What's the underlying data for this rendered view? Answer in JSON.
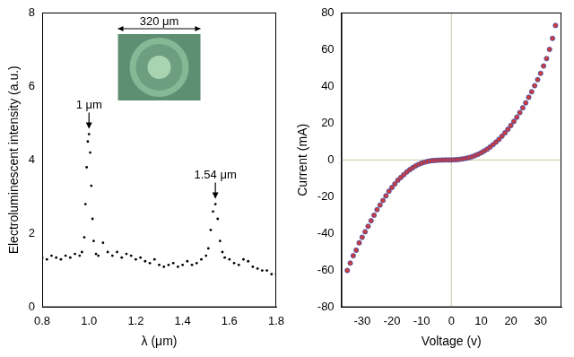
{
  "chart_data": [
    {
      "type": "scatter",
      "x_label": "λ (μm)",
      "y_label": "Electroluminescent intensity (a.u.)",
      "x": [
        0.8,
        0.82,
        0.84,
        0.86,
        0.88,
        0.9,
        0.92,
        0.94,
        0.96,
        0.97,
        0.98,
        0.985,
        0.99,
        0.995,
        1.0,
        1.005,
        1.01,
        1.015,
        1.02,
        1.03,
        1.04,
        1.06,
        1.08,
        1.1,
        1.12,
        1.14,
        1.16,
        1.18,
        1.2,
        1.22,
        1.24,
        1.26,
        1.28,
        1.3,
        1.32,
        1.34,
        1.36,
        1.38,
        1.4,
        1.42,
        1.44,
        1.46,
        1.48,
        1.5,
        1.51,
        1.52,
        1.53,
        1.54,
        1.55,
        1.56,
        1.57,
        1.58,
        1.6,
        1.62,
        1.64,
        1.66,
        1.68,
        1.7,
        1.72,
        1.74,
        1.76,
        1.78,
        1.8
      ],
      "values": [
        1.35,
        1.3,
        1.4,
        1.35,
        1.3,
        1.4,
        1.35,
        1.45,
        1.4,
        1.5,
        1.9,
        2.8,
        3.8,
        4.5,
        4.7,
        4.2,
        3.3,
        2.4,
        1.8,
        1.45,
        1.4,
        1.75,
        1.5,
        1.4,
        1.5,
        1.35,
        1.45,
        1.4,
        1.3,
        1.35,
        1.25,
        1.2,
        1.3,
        1.15,
        1.1,
        1.15,
        1.2,
        1.1,
        1.15,
        1.25,
        1.15,
        1.2,
        1.3,
        1.4,
        1.6,
        2.1,
        2.6,
        2.8,
        2.4,
        1.8,
        1.5,
        1.35,
        1.3,
        1.2,
        1.15,
        1.3,
        1.25,
        1.1,
        1.05,
        1.0,
        1.0,
        0.9,
        0.9
      ],
      "color": "#000000",
      "marker": "circle",
      "xlim": [
        0.8,
        1.8
      ],
      "xticks": [
        0.8,
        {
          "value": 1,
          "label": "1.0"
        },
        1.2,
        1.4,
        1.6,
        1.8
      ],
      "ylim": [
        0,
        8
      ],
      "yticks": [
        0,
        2,
        4,
        6,
        8
      ],
      "grid": false,
      "annotations": [
        {
          "text": "1 μm",
          "x": 1,
          "y": 4.8
        },
        {
          "text": "1.54 μm",
          "x": 1.54,
          "y": 2.9
        }
      ],
      "inset_label": "320 μm"
    },
    {
      "type": "scatter",
      "x_label": "Voltage (v)",
      "y_label": "Current (mA)",
      "x": [
        -35,
        -34,
        -33,
        -32,
        -31,
        -30,
        -29,
        -28,
        -27,
        -26,
        -25,
        -24,
        -23,
        -22,
        -21,
        -20,
        -19,
        -18,
        -17,
        -16,
        -15,
        -14,
        -13,
        -12,
        -11,
        -10,
        -9,
        -8,
        -7,
        -6,
        -5,
        -4,
        -3,
        -2,
        -1,
        0,
        1,
        2,
        3,
        4,
        5,
        6,
        7,
        8,
        9,
        10,
        11,
        12,
        13,
        14,
        15,
        16,
        17,
        18,
        19,
        20,
        21,
        22,
        23,
        24,
        25,
        26,
        27,
        28,
        29,
        30,
        31,
        32,
        33,
        34,
        35
      ],
      "values": [
        -60,
        -56,
        -52,
        -49,
        -45,
        -42,
        -39,
        -36,
        -33,
        -30,
        -27,
        -24.5,
        -22,
        -19.5,
        -17,
        -15,
        -13,
        -11,
        -9.5,
        -8,
        -6.5,
        -5.3,
        -4.2,
        -3.2,
        -2.4,
        -1.7,
        -1.2,
        -0.8,
        -0.5,
        -0.3,
        -0.2,
        -0.1,
        -0.05,
        0,
        0,
        0,
        0.1,
        0.2,
        0.4,
        0.6,
        0.9,
        1.3,
        1.8,
        2.4,
        3.1,
        3.9,
        4.8,
        5.8,
        7,
        8.3,
        9.7,
        11.2,
        12.9,
        14.7,
        16.6,
        18.7,
        20.9,
        23.2,
        25.7,
        28.3,
        31,
        34,
        37,
        40.3,
        43.6,
        47,
        51,
        55,
        60,
        66,
        73
      ],
      "color": "#d03a3a",
      "marker": "circle",
      "xlim": [
        -37,
        37
      ],
      "xticks": [
        -30,
        -20,
        -10,
        0,
        10,
        20,
        30
      ],
      "ylim": [
        -80,
        80
      ],
      "yticks": [
        -80,
        -60,
        -40,
        -20,
        0,
        20,
        40,
        60,
        80
      ],
      "grid": false
    }
  ]
}
